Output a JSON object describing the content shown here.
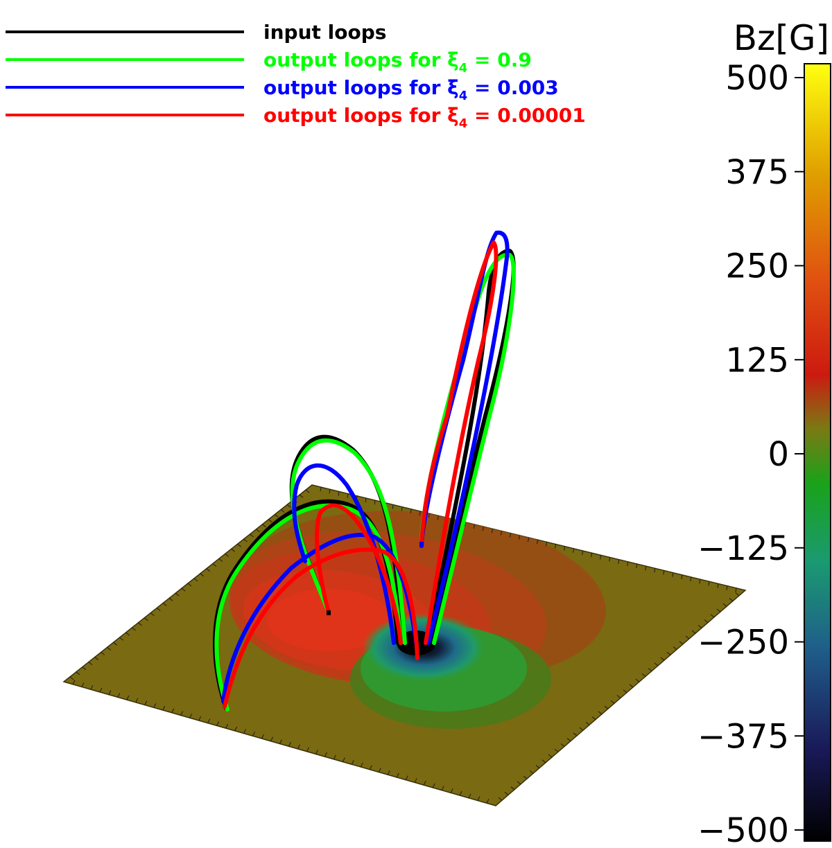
{
  "legend": {
    "items": [
      {
        "prefix": "input loops",
        "sub": "",
        "suffix": "",
        "color": "#000000"
      },
      {
        "prefix": "output loops for ξ",
        "sub": "4",
        "suffix": " = 0.9",
        "color": "#00ff00"
      },
      {
        "prefix": "output loops for ξ",
        "sub": "4",
        "suffix": " = 0.003",
        "color": "#0000ff"
      },
      {
        "prefix": "output loops for ξ",
        "sub": "4",
        "suffix": " = 0.00001",
        "color": "#ff0000"
      }
    ]
  },
  "colorbar": {
    "title": "Bz[G]",
    "ticks": [
      "500",
      "375",
      "250",
      "125",
      "0",
      "−125",
      "−250",
      "−375",
      "−500"
    ]
  },
  "colors": {
    "background_plane": "#7a6a12",
    "positive_polarity": "#d4361a",
    "negative_polarity": "#2f9a30",
    "input": "#000000",
    "xi_0_9": "#00ff00",
    "xi_0_003": "#0000ff",
    "xi_0_00001": "#ff0000"
  }
}
